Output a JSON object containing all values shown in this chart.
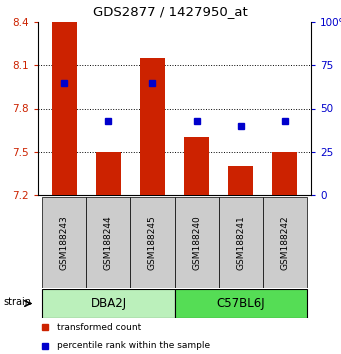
{
  "title": "GDS2877 / 1427950_at",
  "samples": [
    "GSM188243",
    "GSM188244",
    "GSM188245",
    "GSM188240",
    "GSM188241",
    "GSM188242"
  ],
  "groups": [
    {
      "label": "DBA2J",
      "indices": [
        0,
        1,
        2
      ],
      "color": "#bbf0bb"
    },
    {
      "label": "C57BL6J",
      "indices": [
        3,
        4,
        5
      ],
      "color": "#55dd55"
    }
  ],
  "bar_values": [
    8.4,
    7.5,
    8.15,
    7.6,
    7.4,
    7.5
  ],
  "percentile_values": [
    65,
    43,
    65,
    43,
    40,
    43
  ],
  "baseline": 7.2,
  "ylim": [
    7.2,
    8.4
  ],
  "y_ticks": [
    7.2,
    7.5,
    7.8,
    8.1,
    8.4
  ],
  "y_ticks_right": [
    0,
    25,
    50,
    75,
    100
  ],
  "bar_color": "#cc2200",
  "percentile_color": "#0000cc",
  "bar_width": 0.55,
  "legend_items": [
    {
      "color": "#cc2200",
      "label": "transformed count"
    },
    {
      "color": "#0000cc",
      "label": "percentile rank within the sample"
    }
  ],
  "group_box_color": "#cccccc",
  "strain_label": "strain"
}
